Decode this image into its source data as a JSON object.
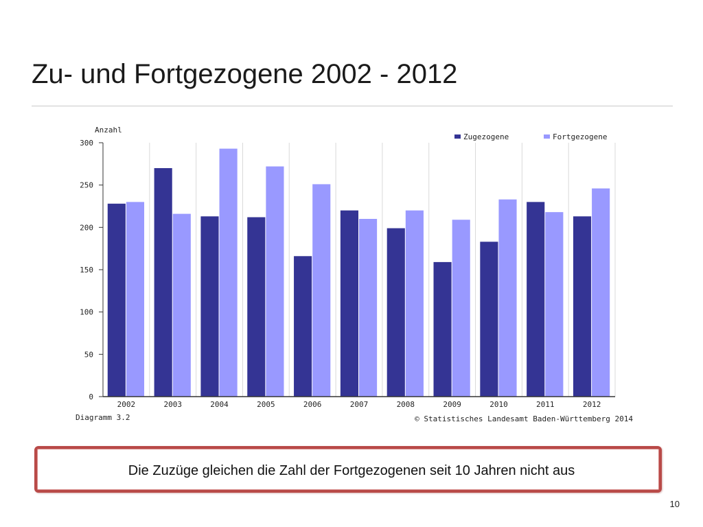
{
  "slide": {
    "title": "Zu- und Fortgezogene 2002 - 2012",
    "note": "Die Zuzüge gleichen die Zahl der Fortgezogenen seit 10 Jahren nicht aus",
    "page_number": "10"
  },
  "chart_data": {
    "type": "bar",
    "ylabel": "Anzahl",
    "caption_left": "Diagramm 3.2",
    "caption_right": "© Statistisches Landesamt Baden-Württemberg 2014",
    "categories": [
      "2002",
      "2003",
      "2004",
      "2005",
      "2006",
      "2007",
      "2008",
      "2009",
      "2010",
      "2011",
      "2012"
    ],
    "series": [
      {
        "name": "Zugezogene",
        "color": "#343494",
        "values": [
          228,
          270,
          213,
          212,
          166,
          220,
          199,
          159,
          183,
          230,
          213
        ]
      },
      {
        "name": "Fortgezogene",
        "color": "#9999ff",
        "values": [
          230,
          216,
          293,
          272,
          251,
          210,
          220,
          209,
          233,
          218,
          246
        ]
      }
    ],
    "ylim": [
      0,
      300
    ],
    "yticks": [
      0,
      50,
      100,
      150,
      200,
      250,
      300
    ],
    "grid": "vertical category separators",
    "legend_position": "top-right"
  }
}
